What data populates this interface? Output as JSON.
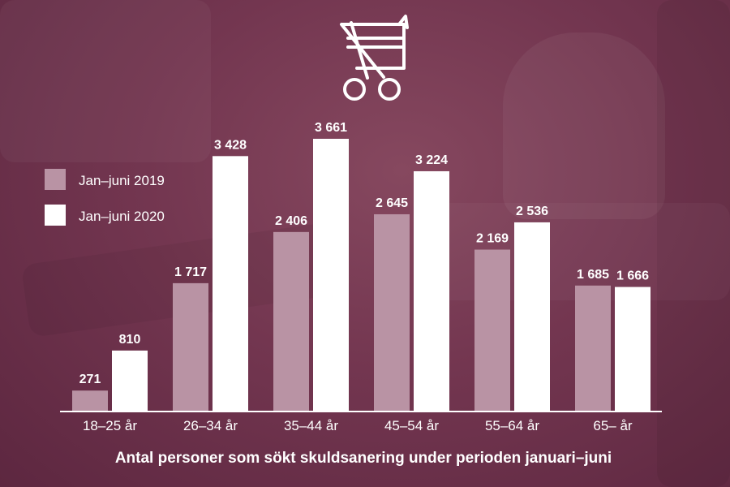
{
  "chart_data": {
    "type": "bar",
    "categories": [
      "18–25 år",
      "26–34 år",
      "35–44 år",
      "45–54 år",
      "55–64 år",
      "65– år"
    ],
    "series": [
      {
        "name": "Jan–juni 2019",
        "values": [
          271,
          1717,
          2406,
          2645,
          2169,
          1685
        ],
        "labels": [
          "271",
          "1 717",
          "2 406",
          "2 645",
          "2 169",
          "1 685"
        ]
      },
      {
        "name": "Jan–juni 2020",
        "values": [
          810,
          3428,
          3661,
          3224,
          2536,
          1666
        ],
        "labels": [
          "810",
          "3 428",
          "3 661",
          "3 224",
          "2 536",
          "1 666"
        ]
      }
    ],
    "title": "Antal personer som sökt skuldsanering under perioden januari–juni",
    "xlabel": "",
    "ylabel": "",
    "ylim": [
      0,
      3661
    ],
    "grid": false,
    "legend_position": "left",
    "colors": {
      "2019": "#b993a4",
      "2020": "#ffffff",
      "text": "#ffffff",
      "background": "#733650"
    }
  },
  "icons": {
    "header": "cut-credit-card-icon"
  }
}
